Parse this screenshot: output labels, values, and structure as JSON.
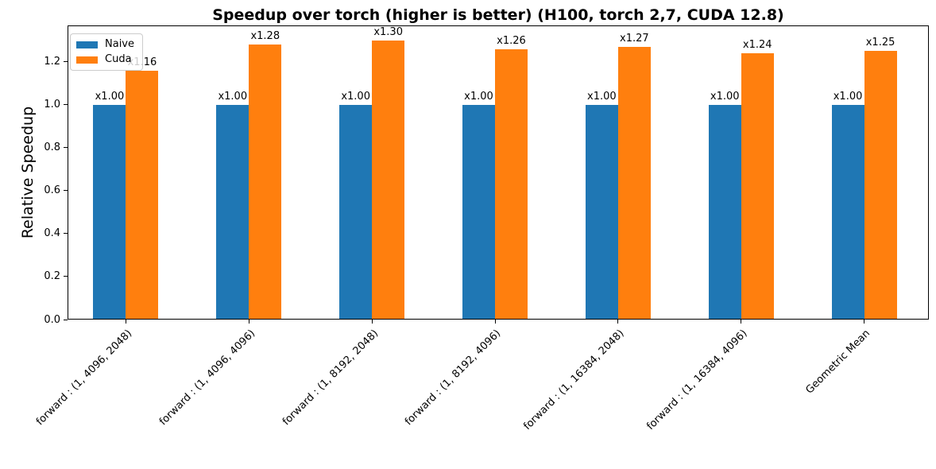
{
  "chart_data": {
    "type": "bar",
    "title": "Speedup over torch (higher is better) (H100, torch 2,7, CUDA 12.8)",
    "xlabel": "",
    "ylabel": "Relative Speedup",
    "categories": [
      "forward : (1, 4096, 2048)",
      "forward : (1, 4096, 4096)",
      "forward : (1, 8192, 2048)",
      "forward : (1, 8192, 4096)",
      "forward : (1, 16384, 2048)",
      "forward : (1, 16384, 4096)",
      "Geometric Mean"
    ],
    "series": [
      {
        "name": "Naive",
        "color": "#1f77b4",
        "values": [
          1.0,
          1.0,
          1.0,
          1.0,
          1.0,
          1.0,
          1.0
        ]
      },
      {
        "name": "Cuda",
        "color": "#ff7f0e",
        "values": [
          1.16,
          1.28,
          1.3,
          1.26,
          1.27,
          1.24,
          1.25
        ]
      }
    ],
    "bar_label_prefix": "x",
    "ylim": [
      0,
      1.37
    ],
    "yticks": [
      0.0,
      0.2,
      0.4,
      0.6,
      0.8,
      1.0,
      1.2
    ],
    "legend_position": "upper left",
    "grid": false,
    "x_tick_rotation_deg": 45
  }
}
